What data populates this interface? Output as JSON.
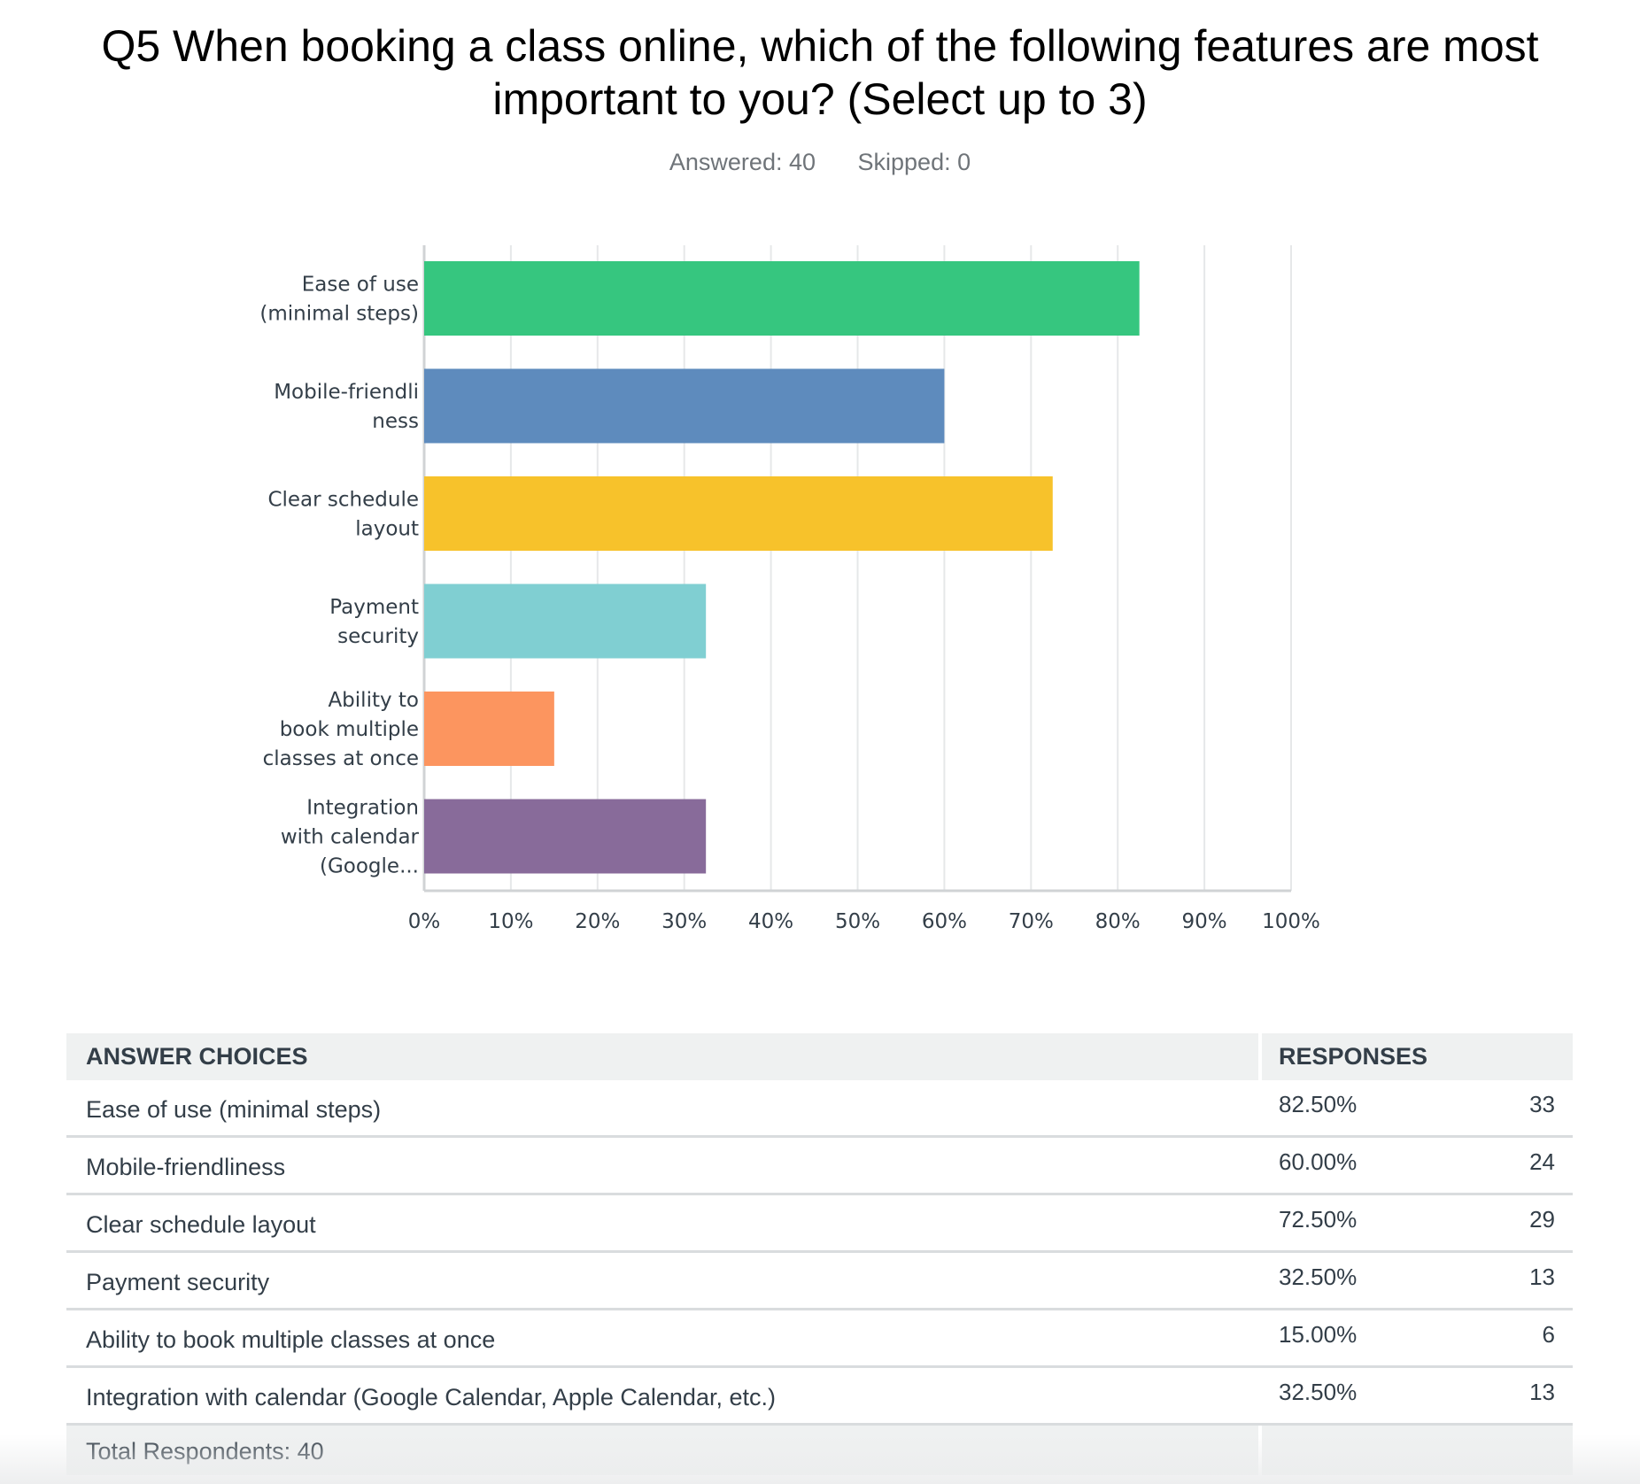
{
  "title": "Q5 When booking a class online, which of the following features are most important to you? (Select up to 3)",
  "stats": {
    "answered": "Answered: 40",
    "skipped": "Skipped: 0"
  },
  "chart_data": {
    "type": "bar",
    "orientation": "horizontal",
    "categories": [
      [
        "Ease of use",
        "(minimal steps)"
      ],
      [
        "Mobile-friendli",
        "ness"
      ],
      [
        "Clear schedule",
        "layout"
      ],
      [
        "Payment",
        "security"
      ],
      [
        "Ability to",
        "book multiple",
        "classes at once"
      ],
      [
        "Integration",
        "with calendar",
        "(Google..."
      ]
    ],
    "values": [
      82.5,
      60.0,
      72.5,
      32.5,
      15.0,
      32.5
    ],
    "colors": [
      "#36c67f",
      "#5e8bbd",
      "#f7c22b",
      "#80cfd2",
      "#fc955f",
      "#886b9a"
    ],
    "xlim": [
      0,
      100
    ],
    "xticks": [
      "0%",
      "10%",
      "20%",
      "30%",
      "40%",
      "50%",
      "60%",
      "70%",
      "80%",
      "90%",
      "100%"
    ],
    "grid": true
  },
  "table": {
    "headers": {
      "choice": "ANSWER CHOICES",
      "responses": "RESPONSES"
    },
    "rows": [
      {
        "choice": "Ease of use (minimal steps)",
        "pct": "82.50%",
        "count": "33"
      },
      {
        "choice": "Mobile-friendliness",
        "pct": "60.00%",
        "count": "24"
      },
      {
        "choice": "Clear schedule layout",
        "pct": "72.50%",
        "count": "29"
      },
      {
        "choice": "Payment security",
        "pct": "32.50%",
        "count": "13"
      },
      {
        "choice": "Ability to book multiple classes at once",
        "pct": "15.00%",
        "count": "6"
      },
      {
        "choice": "Integration with calendar (Google Calendar, Apple Calendar, etc.)",
        "pct": "32.50%",
        "count": "13"
      }
    ],
    "total": "Total Respondents: 40"
  }
}
